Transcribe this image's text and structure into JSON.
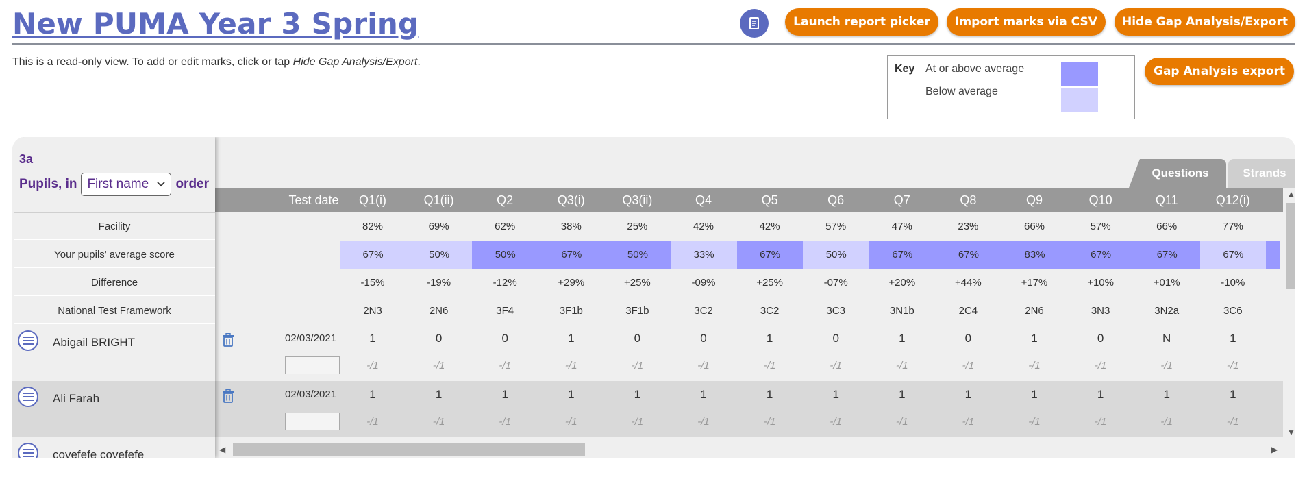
{
  "page": {
    "title": "New PUMA Year 3 Spring",
    "readonly_prefix": "This is a read-only view. To add or edit marks, click or tap ",
    "readonly_link": "Hide Gap Analysis/Export",
    "readonly_suffix": "."
  },
  "toolbar": {
    "launch_label": "Launch report picker",
    "import_label": "Import marks via CSV",
    "hide_label": "Hide Gap Analysis/Export",
    "gap_export_label": "Gap Analysis export",
    "book_icon": "book-icon"
  },
  "key": {
    "title": "Key",
    "above": "At or above average",
    "below": "Below average",
    "above_color": "#9999ff",
    "below_color": "#d1d1ff"
  },
  "grid": {
    "class_link": "3a",
    "pupils_prefix": "Pupils, in",
    "order_selected": "First name",
    "pupils_suffix": "order",
    "tabs": [
      "Questions",
      "Strands"
    ],
    "test_date_header": "Test date",
    "row_labels": [
      "Facility",
      "Your pupils' average score",
      "Difference",
      "National Test Framework"
    ],
    "questions": [
      "Q1(i)",
      "Q1(ii)",
      "Q2",
      "Q3(i)",
      "Q3(ii)",
      "Q4",
      "Q5",
      "Q6",
      "Q7",
      "Q8",
      "Q9",
      "Q10",
      "Q11",
      "Q12(i)"
    ],
    "facility": [
      "82%",
      "69%",
      "62%",
      "38%",
      "25%",
      "42%",
      "42%",
      "57%",
      "47%",
      "23%",
      "66%",
      "57%",
      "66%",
      "77%"
    ],
    "average": [
      "67%",
      "50%",
      "50%",
      "67%",
      "50%",
      "33%",
      "67%",
      "50%",
      "67%",
      "67%",
      "83%",
      "67%",
      "67%",
      "67%"
    ],
    "average_status": [
      "below",
      "below",
      "above",
      "above",
      "above",
      "below",
      "above",
      "below",
      "above",
      "above",
      "above",
      "above",
      "above",
      "below"
    ],
    "difference": [
      "-15%",
      "-19%",
      "-12%",
      "+29%",
      "+25%",
      "-09%",
      "+25%",
      "-07%",
      "+20%",
      "+44%",
      "+17%",
      "+10%",
      "+01%",
      "-10%"
    ],
    "framework": [
      "2N3",
      "2N6",
      "3F4",
      "3F1b",
      "3F1b",
      "3C2",
      "3C2",
      "3C3",
      "3N1b",
      "2C4",
      "2N6",
      "3N3",
      "3N2a",
      "3C6"
    ],
    "pupils": [
      {
        "name": "Abigail BRIGHT",
        "date": "02/03/2021",
        "marks": [
          "1",
          "0",
          "0",
          "1",
          "0",
          "0",
          "1",
          "0",
          "1",
          "0",
          "1",
          "0",
          "N",
          "1"
        ],
        "out_of": "-/1"
      },
      {
        "name": "Ali Farah",
        "date": "02/03/2021",
        "marks": [
          "1",
          "1",
          "1",
          "1",
          "1",
          "1",
          "1",
          "1",
          "1",
          "1",
          "1",
          "1",
          "1",
          "1"
        ],
        "out_of": "-/1"
      },
      {
        "name": "covefefe covefefe",
        "date": "",
        "marks": [],
        "out_of": ""
      }
    ]
  }
}
